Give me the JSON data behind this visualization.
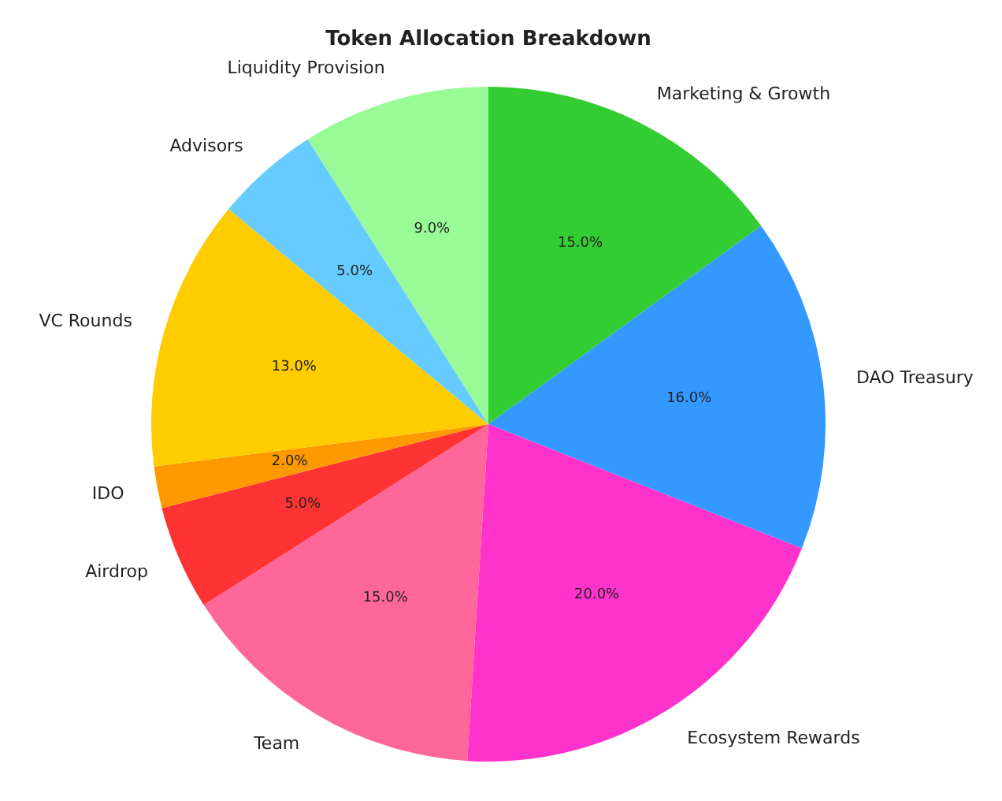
{
  "chart_data": {
    "type": "pie",
    "title": "Token Allocation Breakdown",
    "categories": [
      "Marketing & Growth",
      "DAO Treasury",
      "Ecosystem Rewards",
      "Team",
      "Airdrop",
      "IDO",
      "VC Rounds",
      "Advisors",
      "Liquidity Provision"
    ],
    "values": [
      15,
      16,
      20,
      15,
      5,
      2,
      13,
      5,
      9
    ],
    "colors": [
      "#33cc33",
      "#3399ff",
      "#ff33cc",
      "#ff6699",
      "#ff3333",
      "#ff9900",
      "#ffcc00",
      "#66ccff",
      "#98fb98"
    ],
    "value_labels": [
      "15.0%",
      "16.0%",
      "20.0%",
      "15.0%",
      "5.0%",
      "2.0%",
      "13.0%",
      "5.0%",
      "9.0%"
    ]
  }
}
